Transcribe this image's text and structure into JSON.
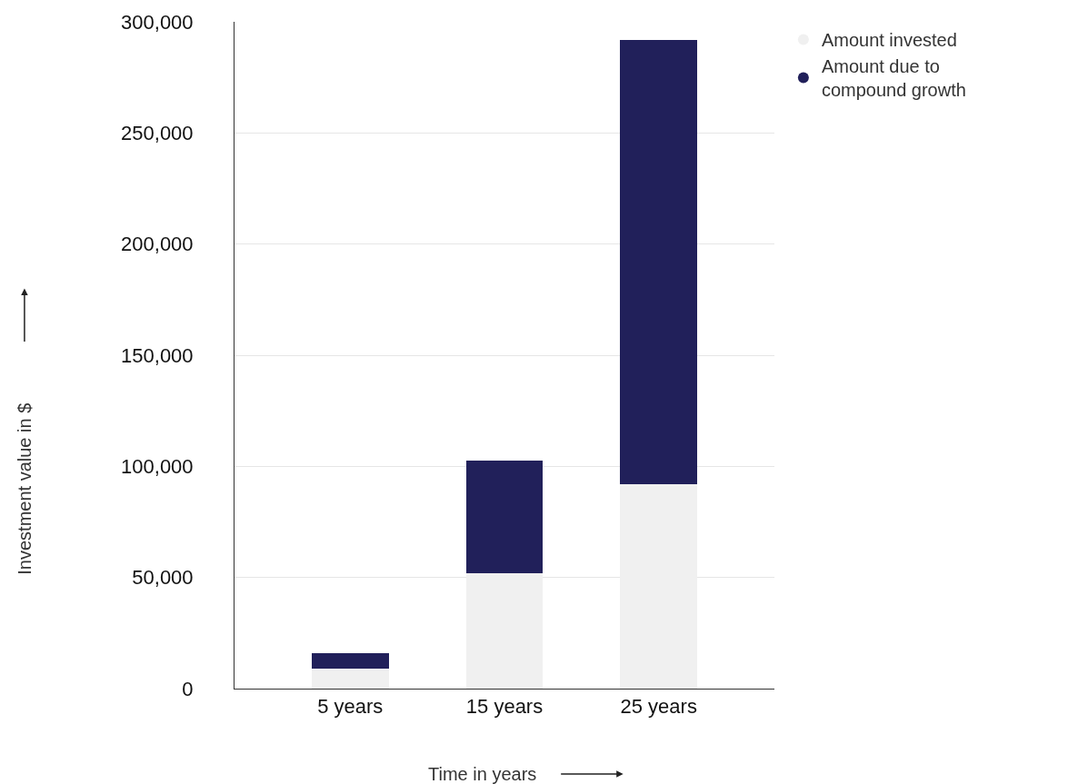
{
  "chart_data": {
    "type": "bar",
    "stacked": true,
    "xlabel": "Time in years",
    "ylabel": "Investment value in $",
    "categories": [
      "5 years",
      "15 years",
      "25 years"
    ],
    "series": [
      {
        "name": "Amount invested",
        "color": "#f0f0f0",
        "values": [
          9000,
          52000,
          92000
        ]
      },
      {
        "name": "Amount due to compound growth",
        "color": "#21205a",
        "values": [
          7000,
          50500,
          200000
        ]
      }
    ],
    "ylim": [
      0,
      300000
    ],
    "yticks": [
      {
        "value": 0,
        "label": "0"
      },
      {
        "value": 50000,
        "label": "50,000"
      },
      {
        "value": 100000,
        "label": "100,000"
      },
      {
        "value": 150000,
        "label": "150,000"
      },
      {
        "value": 200000,
        "label": "200,000"
      },
      {
        "value": 250000,
        "label": "250,000"
      },
      {
        "value": 300000,
        "label": "300,000"
      }
    ],
    "grid": "y",
    "legend": "top right",
    "marker": "circle"
  }
}
